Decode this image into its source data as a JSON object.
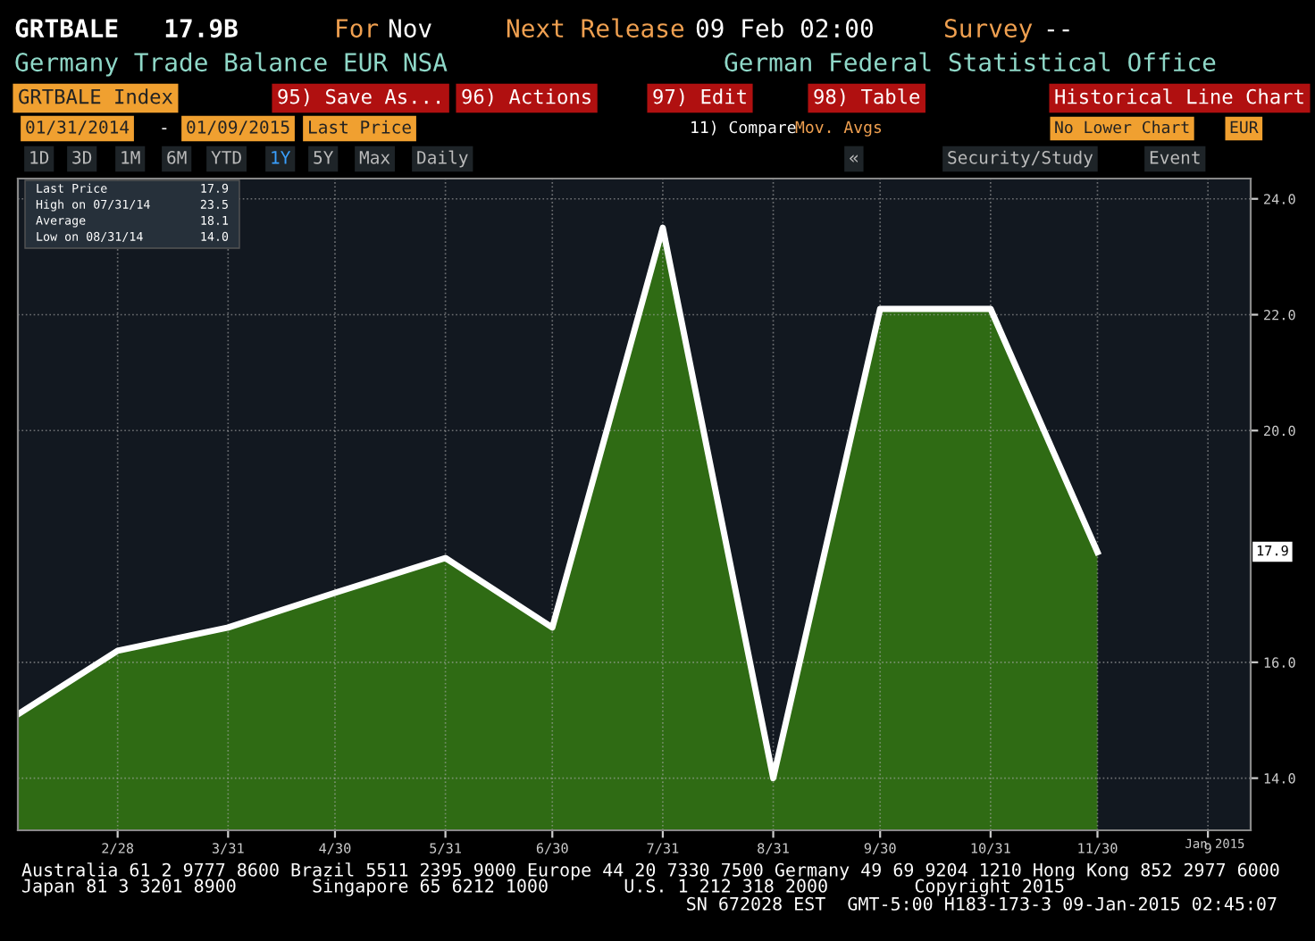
{
  "chart_data": {
    "type": "area",
    "title": "GRTBALE   17.9B",
    "subtitle": "Germany Trade Balance EUR NSA",
    "x": [
      "2014-01-31",
      "2014-02-28",
      "2014-03-31",
      "2014-04-30",
      "2014-05-31",
      "2014-06-30",
      "2014-07-31",
      "2014-08-31",
      "2014-09-30",
      "2014-10-31",
      "2014-11-30"
    ],
    "series": [
      {
        "color": "#2f6b14",
        "values": [
          15.1,
          16.2,
          16.6,
          17.2,
          17.8,
          16.6,
          23.5,
          14.0,
          22.1,
          22.1,
          17.9
        ]
      }
    ],
    "xlim": [
      "2014-01-31",
      "2015-01-12"
    ],
    "xticks": [
      {
        "value": "2014-02-28",
        "label": "2/28"
      },
      {
        "value": "2014-03-31",
        "label": "3/31"
      },
      {
        "value": "2014-04-30",
        "label": "4/30"
      },
      {
        "value": "2014-05-31",
        "label": "5/31"
      },
      {
        "value": "2014-06-30",
        "label": "6/30"
      },
      {
        "value": "2014-07-31",
        "label": "7/31"
      },
      {
        "value": "2014-08-31",
        "label": "8/31"
      },
      {
        "value": "2014-09-30",
        "label": "9/30"
      },
      {
        "value": "2014-10-31",
        "label": "10/31"
      },
      {
        "value": "2014-11-30",
        "label": "11/30"
      },
      {
        "value": "2014-12-31",
        "label": "9"
      }
    ],
    "ylim": [
      13.1,
      24.35
    ],
    "yticks": [
      {
        "value": 14,
        "label": "14.0"
      },
      {
        "value": 16,
        "label": "16.0"
      },
      {
        "value": 20,
        "label": "20.0"
      },
      {
        "value": 22,
        "label": "22.0"
      },
      {
        "value": 24,
        "label": "24.0"
      }
    ],
    "grid": true,
    "annotations": [
      "For",
      "Nov",
      "Next Release",
      "09 Feb 02:00",
      "Survey",
      "--",
      "German Federal Statistical Office",
      "GRTBALE Index",
      "95) Save As...",
      "96) Actions",
      "97) Edit",
      "98) Table",
      "Historical Line Chart",
      "01/31/2014",
      "-",
      "01/09/2015",
      "Last Price",
      "11) Compare",
      "Mov. Avgs",
      "No Lower Chart",
      "EUR",
      "1D",
      "3D",
      "1M",
      "6M",
      "YTD",
      "1Y",
      "5Y",
      "Max",
      "Daily",
      "«",
      "Security/Study",
      "Event",
      "Last Price",
      "17.9",
      "High on 07/31/14",
      "23.5",
      "Average",
      "18.1",
      "Low on 08/31/14",
      "14.0",
      "Jan 2015",
      "Australia 61 2 9777 8600 Brazil 5511 2395 9000 Europe 44 20 7330 7500 Germany 49 69 9204 1210 Hong Kong 852 2977 6000",
      "Japan 81 3 3201 8900       Singapore 65 6212 1000       U.S. 1 212 318 2000        Copyright 2015",
      "SN 672028 EST  GMT-5:00 H183-173-3 09-Jan-2015 02:45:07",
      "17.9"
    ]
  }
}
